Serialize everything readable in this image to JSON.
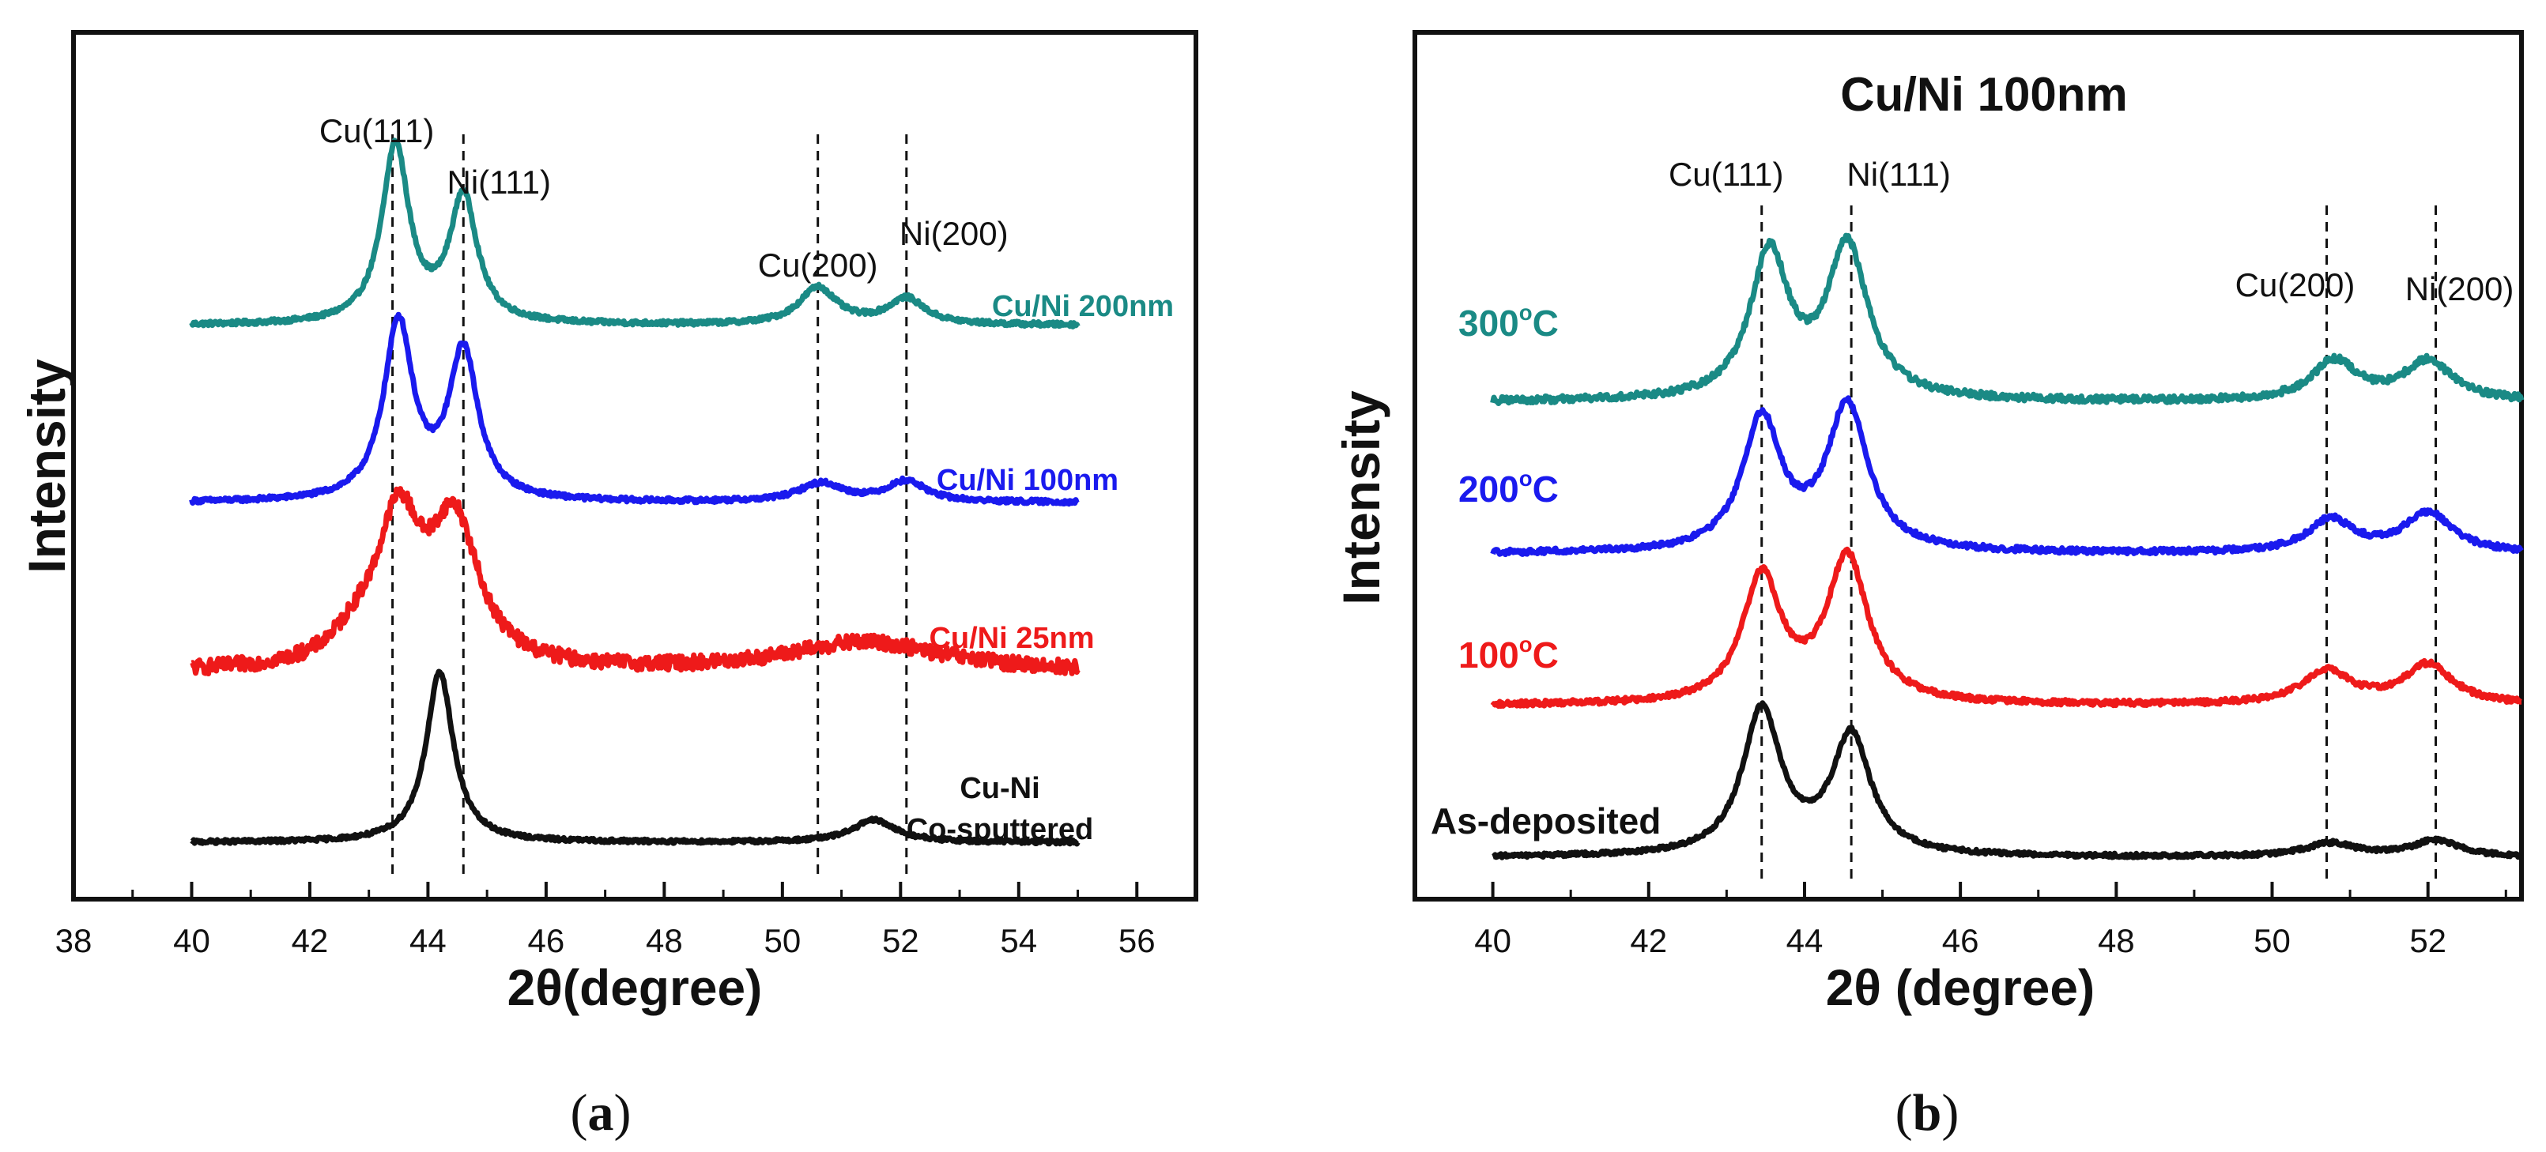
{
  "chart_data": [
    {
      "type": "line",
      "panel": "(a)",
      "title": "",
      "xlabel": "2θ(degree)",
      "ylabel": "Intensity",
      "xlim": [
        38,
        57
      ],
      "ylim": [
        0,
        100
      ],
      "xticks": [
        38,
        40,
        42,
        44,
        46,
        48,
        50,
        52,
        54,
        56
      ],
      "tick_labels": [
        "38",
        "40",
        "42",
        "44",
        "46",
        "48",
        "50",
        "52",
        "54",
        "56"
      ],
      "reference_lines": [
        {
          "label": "Cu(111)",
          "x": 43.4
        },
        {
          "label": "Ni(111)",
          "x": 44.6
        },
        {
          "label": "Cu(200)",
          "x": 50.6
        },
        {
          "label": "Ni(200)",
          "x": 52.1
        }
      ],
      "series": [
        {
          "name": "Cu/Ni 200nm",
          "color": "#1a8a85",
          "baseline": 72,
          "noise": 0.3,
          "x_range": [
            40,
            55
          ],
          "peaks": [
            {
              "center": 43.45,
              "height": 24,
              "width": 0.28
            },
            {
              "center": 44.6,
              "height": 17,
              "width": 0.28
            },
            {
              "center": 50.6,
              "height": 5,
              "width": 0.38
            },
            {
              "center": 52.1,
              "height": 3.5,
              "width": 0.38
            }
          ]
        },
        {
          "name": "Cu/Ni 100nm",
          "color": "#1a1aee",
          "baseline": 48,
          "noise": 0.3,
          "x_range": [
            40,
            55
          ],
          "peaks": [
            {
              "center": 43.5,
              "height": 24,
              "width": 0.3
            },
            {
              "center": 44.6,
              "height": 20,
              "width": 0.3
            },
            {
              "center": 50.65,
              "height": 2.5,
              "width": 0.45
            },
            {
              "center": 52.1,
              "height": 2.8,
              "width": 0.4
            }
          ]
        },
        {
          "name": "Cu/Ni 25nm",
          "color": "#ee1a1a",
          "baseline": 25,
          "noise": 1.0,
          "x_range": [
            40,
            55
          ],
          "peaks": [
            {
              "center": 43.5,
              "height": 19,
              "width": 0.45
            },
            {
              "center": 44.45,
              "height": 19,
              "width": 0.5
            },
            {
              "center": 42.8,
              "height": 3,
              "width": 0.5
            },
            {
              "center": 51.4,
              "height": 4,
              "width": 1.6
            }
          ]
        },
        {
          "name": "Cu-Ni Co-sputtered",
          "label_lines": [
            "Cu-Ni",
            "Co-sputtered"
          ],
          "color": "#111111",
          "baseline": 2,
          "noise": 0.25,
          "x_range": [
            40,
            55
          ],
          "peaks": [
            {
              "center": 44.2,
              "height": 23,
              "width": 0.28
            },
            {
              "center": 51.55,
              "height": 3,
              "width": 0.45
            }
          ]
        }
      ]
    },
    {
      "type": "line",
      "panel": "(b)",
      "title": "Cu/Ni 100nm",
      "xlabel": "2θ (degree)",
      "ylabel": "Intensity",
      "xlim": [
        39,
        53.2
      ],
      "ylim": [
        0,
        100
      ],
      "xticks": [
        40,
        42,
        44,
        46,
        48,
        50,
        52
      ],
      "tick_labels": [
        "40",
        "42",
        "44",
        "46",
        "48",
        "50",
        "52"
      ],
      "reference_lines": [
        {
          "label": "Cu(111)",
          "x": 43.45
        },
        {
          "label": "Ni(111)",
          "x": 44.6
        },
        {
          "label": "Cu(200)",
          "x": 50.7
        },
        {
          "label": "Ni(200)",
          "x": 52.1
        }
      ],
      "series": [
        {
          "name": "300°C",
          "label_base": "300",
          "label_sup": "o",
          "label_tail": "C",
          "color": "#1a8a85",
          "baseline": 69,
          "noise": 0.5,
          "x_range": [
            40,
            53.2
          ],
          "peaks": [
            {
              "center": 43.55,
              "height": 22,
              "width": 0.3
            },
            {
              "center": 44.55,
              "height": 23,
              "width": 0.32
            },
            {
              "center": 50.8,
              "height": 6,
              "width": 0.35
            },
            {
              "center": 52.0,
              "height": 6,
              "width": 0.38
            }
          ]
        },
        {
          "name": "200°C",
          "label_base": "200",
          "label_sup": "o",
          "label_tail": "C",
          "color": "#1a1aee",
          "baseline": 46,
          "noise": 0.4,
          "x_range": [
            40,
            53.2
          ],
          "peaks": [
            {
              "center": 43.45,
              "height": 20,
              "width": 0.3
            },
            {
              "center": 44.55,
              "height": 22,
              "width": 0.32
            },
            {
              "center": 50.75,
              "height": 5,
              "width": 0.35
            },
            {
              "center": 52.0,
              "height": 6,
              "width": 0.38
            }
          ]
        },
        {
          "name": "100°C",
          "label_base": "100",
          "label_sup": "o",
          "label_tail": "C",
          "color": "#ee1a1a",
          "baseline": 23,
          "noise": 0.4,
          "x_range": [
            40,
            53.2
          ],
          "peaks": [
            {
              "center": 43.45,
              "height": 19,
              "width": 0.3
            },
            {
              "center": 44.55,
              "height": 22,
              "width": 0.32
            },
            {
              "center": 50.7,
              "height": 5,
              "width": 0.38
            },
            {
              "center": 52.0,
              "height": 6,
              "width": 0.38
            }
          ]
        },
        {
          "name": "As-deposited",
          "label_base": "As-deposited",
          "label_sup": "",
          "label_tail": "",
          "color": "#111111",
          "baseline": 0,
          "noise": 0.3,
          "x_range": [
            40,
            53.2
          ],
          "peaks": [
            {
              "center": 43.45,
              "height": 22,
              "width": 0.3
            },
            {
              "center": 44.6,
              "height": 18,
              "width": 0.3
            },
            {
              "center": 50.75,
              "height": 2,
              "width": 0.4
            },
            {
              "center": 52.1,
              "height": 2.5,
              "width": 0.35
            }
          ]
        }
      ]
    }
  ],
  "captions": [
    {
      "open": "(",
      "letter": "a",
      "close": ")"
    },
    {
      "open": "(",
      "letter": "b",
      "close": ")"
    }
  ]
}
